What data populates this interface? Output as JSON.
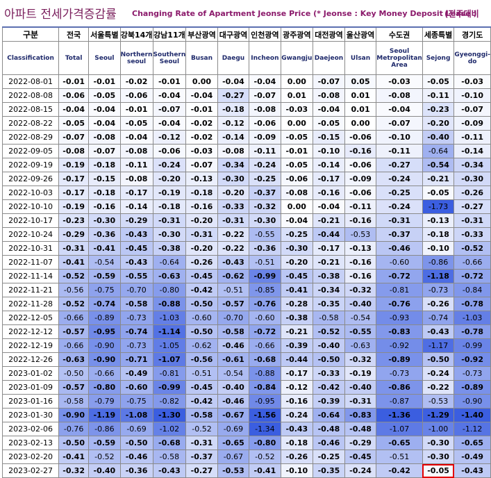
{
  "title": {
    "korean": "아파트 전세가격증감률",
    "english": "Changing Rate of Apartment Jeonse Price (* Jeonse : Key Money Deposit Lease )",
    "right": "(전주대비"
  },
  "header": {
    "first_ko": "구분",
    "first_en": "Classification",
    "columns": [
      {
        "ko": "전국",
        "en": "Total"
      },
      {
        "ko": "서울특별",
        "en": "Seoul"
      },
      {
        "ko": "강북14개",
        "en": "Northern seoul"
      },
      {
        "ko": "강남11개",
        "en": "Southern Seoul"
      },
      {
        "ko": "부산광역",
        "en": "Busan"
      },
      {
        "ko": "대구광역",
        "en": "Daegu"
      },
      {
        "ko": "인천광역",
        "en": "Incheon"
      },
      {
        "ko": "광주광역",
        "en": "Gwangju"
      },
      {
        "ko": "대전광역",
        "en": "Daejeon"
      },
      {
        "ko": "울산광역",
        "en": "Ulsan"
      },
      {
        "ko": "수도권",
        "en": "Seoul Metropolitan Area"
      },
      {
        "ko": "세종특별",
        "en": "Sejong"
      },
      {
        "ko": "경기도",
        "en": "Gyeonggi-do"
      }
    ]
  },
  "rows": [
    {
      "date": "2022-08-01",
      "values": [
        -0.01,
        -0.01,
        -0.02,
        -0.01,
        0.0,
        -0.04,
        -0.04,
        0.0,
        -0.07,
        0.05,
        -0.03,
        -0.05,
        -0.03
      ]
    },
    {
      "date": "2022-08-08",
      "values": [
        -0.06,
        -0.05,
        -0.06,
        -0.04,
        -0.04,
        -0.27,
        -0.07,
        0.01,
        -0.08,
        0.01,
        -0.08,
        -0.11,
        -0.1
      ]
    },
    {
      "date": "2022-08-15",
      "values": [
        -0.04,
        -0.04,
        -0.01,
        -0.07,
        -0.01,
        -0.18,
        -0.08,
        -0.03,
        -0.04,
        0.01,
        -0.04,
        -0.23,
        -0.07
      ]
    },
    {
      "date": "2022-08-22",
      "values": [
        -0.05,
        -0.04,
        -0.05,
        -0.04,
        -0.02,
        -0.12,
        -0.06,
        0.0,
        -0.05,
        0.0,
        -0.07,
        -0.2,
        -0.09
      ]
    },
    {
      "date": "2022-08-29",
      "values": [
        -0.07,
        -0.08,
        -0.04,
        -0.12,
        -0.02,
        -0.14,
        -0.09,
        -0.05,
        -0.15,
        -0.06,
        -0.1,
        -0.4,
        -0.11
      ]
    },
    {
      "date": "2022-09-05",
      "values": [
        -0.08,
        -0.07,
        -0.08,
        -0.06,
        -0.03,
        -0.08,
        -0.11,
        -0.01,
        -0.1,
        -0.16,
        -0.11,
        -0.64,
        -0.14
      ]
    },
    {
      "date": "2022-09-19",
      "values": [
        -0.19,
        -0.18,
        -0.11,
        -0.24,
        -0.07,
        -0.34,
        -0.24,
        -0.05,
        -0.14,
        -0.06,
        -0.27,
        -0.54,
        -0.34
      ]
    },
    {
      "date": "2022-09-26",
      "values": [
        -0.17,
        -0.15,
        -0.08,
        -0.2,
        -0.13,
        -0.3,
        -0.25,
        -0.06,
        -0.17,
        -0.09,
        -0.24,
        -0.21,
        -0.3
      ]
    },
    {
      "date": "2022-10-03",
      "values": [
        -0.17,
        -0.18,
        -0.17,
        -0.19,
        -0.18,
        -0.2,
        -0.37,
        -0.08,
        -0.16,
        -0.06,
        -0.25,
        -0.05,
        -0.26
      ]
    },
    {
      "date": "2022-10-10",
      "values": [
        -0.19,
        -0.16,
        -0.14,
        -0.18,
        -0.16,
        -0.33,
        -0.32,
        0.0,
        -0.04,
        -0.11,
        -0.24,
        -1.73,
        -0.27
      ]
    },
    {
      "date": "2022-10-17",
      "values": [
        -0.23,
        -0.3,
        -0.29,
        -0.31,
        -0.2,
        -0.31,
        -0.3,
        -0.04,
        -0.21,
        -0.16,
        -0.31,
        -0.13,
        -0.31
      ]
    },
    {
      "date": "2022-10-24",
      "values": [
        -0.29,
        -0.36,
        -0.43,
        -0.3,
        -0.31,
        -0.22,
        -0.55,
        -0.25,
        -0.44,
        -0.53,
        -0.37,
        -0.18,
        -0.33
      ]
    },
    {
      "date": "2022-10-31",
      "values": [
        -0.31,
        -0.41,
        -0.45,
        -0.38,
        -0.2,
        -0.22,
        -0.36,
        -0.3,
        -0.17,
        -0.13,
        -0.46,
        -0.1,
        -0.52
      ]
    },
    {
      "date": "2022-11-07",
      "values": [
        -0.41,
        -0.54,
        -0.43,
        -0.64,
        -0.26,
        -0.43,
        -0.51,
        -0.2,
        -0.21,
        -0.16,
        -0.6,
        -0.86,
        -0.66
      ]
    },
    {
      "date": "2022-11-14",
      "values": [
        -0.52,
        -0.59,
        -0.55,
        -0.63,
        -0.45,
        -0.62,
        -0.99,
        -0.45,
        -0.38,
        -0.16,
        -0.72,
        -1.18,
        -0.72
      ]
    },
    {
      "date": "2022-11-21",
      "values": [
        -0.56,
        -0.75,
        -0.7,
        -0.8,
        -0.42,
        -0.51,
        -0.85,
        -0.41,
        -0.34,
        -0.32,
        -0.81,
        -0.73,
        -0.84
      ]
    },
    {
      "date": "2022-11-28",
      "values": [
        -0.52,
        -0.74,
        -0.58,
        -0.88,
        -0.5,
        -0.57,
        -0.76,
        -0.28,
        -0.35,
        -0.4,
        -0.76,
        -0.26,
        -0.78
      ]
    },
    {
      "date": "2022-12-05",
      "values": [
        -0.66,
        -0.89,
        -0.73,
        -1.03,
        -0.6,
        -0.7,
        -0.6,
        -0.38,
        -0.58,
        -0.54,
        -0.93,
        -0.74,
        -1.03
      ]
    },
    {
      "date": "2022-12-12",
      "values": [
        -0.57,
        -0.95,
        -0.74,
        -1.14,
        -0.5,
        -0.58,
        -0.72,
        -0.21,
        -0.52,
        -0.55,
        -0.83,
        -0.43,
        -0.78
      ]
    },
    {
      "date": "2022-12-19",
      "values": [
        -0.66,
        -0.9,
        -0.73,
        -1.05,
        -0.62,
        -0.46,
        -0.66,
        -0.39,
        -0.4,
        -0.63,
        -0.92,
        -1.17,
        -0.99
      ]
    },
    {
      "date": "2022-12-26",
      "values": [
        -0.63,
        -0.9,
        -0.71,
        -1.07,
        -0.56,
        -0.61,
        -0.68,
        -0.44,
        -0.5,
        -0.32,
        -0.89,
        -0.5,
        -0.92
      ]
    },
    {
      "date": "2023-01-02",
      "values": [
        -0.5,
        -0.66,
        -0.49,
        -0.81,
        -0.51,
        -0.54,
        -0.88,
        -0.17,
        -0.33,
        -0.19,
        -0.73,
        -0.24,
        -0.73
      ]
    },
    {
      "date": "2023-01-09",
      "values": [
        -0.57,
        -0.8,
        -0.6,
        -0.99,
        -0.45,
        -0.4,
        -0.84,
        -0.12,
        -0.42,
        -0.4,
        -0.86,
        -0.22,
        -0.89
      ]
    },
    {
      "date": "2023-01-16",
      "values": [
        -0.58,
        -0.79,
        -0.75,
        -0.82,
        -0.42,
        -0.46,
        -0.95,
        -0.16,
        -0.39,
        -0.31,
        -0.87,
        -0.53,
        -0.9
      ]
    },
    {
      "date": "2023-01-30",
      "values": [
        -0.9,
        -1.19,
        -1.08,
        -1.3,
        -0.58,
        -0.67,
        -1.56,
        -0.24,
        -0.64,
        -0.83,
        -1.36,
        -1.29,
        -1.4
      ]
    },
    {
      "date": "2023-02-06",
      "values": [
        -0.76,
        -0.86,
        -0.69,
        -1.02,
        -0.52,
        -0.69,
        -1.34,
        -0.43,
        -0.48,
        -0.48,
        -1.07,
        -1.0,
        -1.12
      ]
    },
    {
      "date": "2023-02-13",
      "values": [
        -0.5,
        -0.59,
        -0.5,
        -0.68,
        -0.31,
        -0.65,
        -0.8,
        -0.18,
        -0.46,
        -0.29,
        -0.65,
        -0.3,
        -0.65
      ]
    },
    {
      "date": "2023-02-20",
      "values": [
        -0.41,
        -0.52,
        -0.46,
        -0.58,
        -0.37,
        -0.67,
        -0.52,
        -0.26,
        -0.25,
        -0.45,
        -0.51,
        -0.3,
        -0.49
      ]
    },
    {
      "date": "2023-02-27",
      "values": [
        -0.32,
        -0.4,
        -0.36,
        -0.43,
        -0.27,
        -0.53,
        -0.41,
        -0.1,
        -0.35,
        -0.24,
        -0.42,
        -0.05,
        -0.43
      ]
    }
  ],
  "highlight": {
    "row": 28,
    "col": 11
  },
  "colors": {
    "title": "#7a1f5c",
    "header_border": "#5b6fb0",
    "highlight_border": "#e30000",
    "scale_light": "#ffffff",
    "scale_dark": "#3b5ee0"
  }
}
